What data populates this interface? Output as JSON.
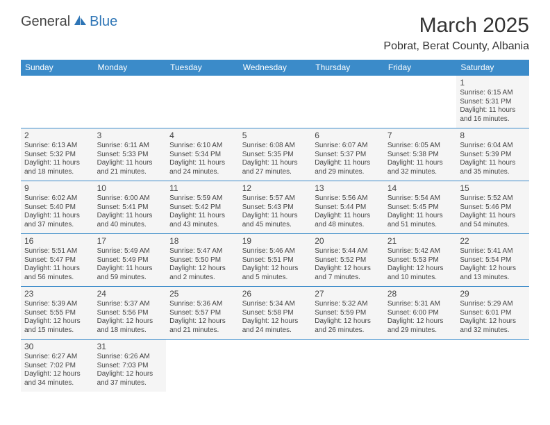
{
  "logo": {
    "general": "General",
    "blue": "Blue"
  },
  "title": "March 2025",
  "location": "Pobrat, Berat County, Albania",
  "header_color": "#3b8bc9",
  "days": [
    "Sunday",
    "Monday",
    "Tuesday",
    "Wednesday",
    "Thursday",
    "Friday",
    "Saturday"
  ],
  "weeks": [
    [
      null,
      null,
      null,
      null,
      null,
      null,
      {
        "n": "1",
        "sr": "Sunrise: 6:15 AM",
        "ss": "Sunset: 5:31 PM",
        "dl": "Daylight: 11 hours and 16 minutes."
      }
    ],
    [
      {
        "n": "2",
        "sr": "Sunrise: 6:13 AM",
        "ss": "Sunset: 5:32 PM",
        "dl": "Daylight: 11 hours and 18 minutes."
      },
      {
        "n": "3",
        "sr": "Sunrise: 6:11 AM",
        "ss": "Sunset: 5:33 PM",
        "dl": "Daylight: 11 hours and 21 minutes."
      },
      {
        "n": "4",
        "sr": "Sunrise: 6:10 AM",
        "ss": "Sunset: 5:34 PM",
        "dl": "Daylight: 11 hours and 24 minutes."
      },
      {
        "n": "5",
        "sr": "Sunrise: 6:08 AM",
        "ss": "Sunset: 5:35 PM",
        "dl": "Daylight: 11 hours and 27 minutes."
      },
      {
        "n": "6",
        "sr": "Sunrise: 6:07 AM",
        "ss": "Sunset: 5:37 PM",
        "dl": "Daylight: 11 hours and 29 minutes."
      },
      {
        "n": "7",
        "sr": "Sunrise: 6:05 AM",
        "ss": "Sunset: 5:38 PM",
        "dl": "Daylight: 11 hours and 32 minutes."
      },
      {
        "n": "8",
        "sr": "Sunrise: 6:04 AM",
        "ss": "Sunset: 5:39 PM",
        "dl": "Daylight: 11 hours and 35 minutes."
      }
    ],
    [
      {
        "n": "9",
        "sr": "Sunrise: 6:02 AM",
        "ss": "Sunset: 5:40 PM",
        "dl": "Daylight: 11 hours and 37 minutes."
      },
      {
        "n": "10",
        "sr": "Sunrise: 6:00 AM",
        "ss": "Sunset: 5:41 PM",
        "dl": "Daylight: 11 hours and 40 minutes."
      },
      {
        "n": "11",
        "sr": "Sunrise: 5:59 AM",
        "ss": "Sunset: 5:42 PM",
        "dl": "Daylight: 11 hours and 43 minutes."
      },
      {
        "n": "12",
        "sr": "Sunrise: 5:57 AM",
        "ss": "Sunset: 5:43 PM",
        "dl": "Daylight: 11 hours and 45 minutes."
      },
      {
        "n": "13",
        "sr": "Sunrise: 5:56 AM",
        "ss": "Sunset: 5:44 PM",
        "dl": "Daylight: 11 hours and 48 minutes."
      },
      {
        "n": "14",
        "sr": "Sunrise: 5:54 AM",
        "ss": "Sunset: 5:45 PM",
        "dl": "Daylight: 11 hours and 51 minutes."
      },
      {
        "n": "15",
        "sr": "Sunrise: 5:52 AM",
        "ss": "Sunset: 5:46 PM",
        "dl": "Daylight: 11 hours and 54 minutes."
      }
    ],
    [
      {
        "n": "16",
        "sr": "Sunrise: 5:51 AM",
        "ss": "Sunset: 5:47 PM",
        "dl": "Daylight: 11 hours and 56 minutes."
      },
      {
        "n": "17",
        "sr": "Sunrise: 5:49 AM",
        "ss": "Sunset: 5:49 PM",
        "dl": "Daylight: 11 hours and 59 minutes."
      },
      {
        "n": "18",
        "sr": "Sunrise: 5:47 AM",
        "ss": "Sunset: 5:50 PM",
        "dl": "Daylight: 12 hours and 2 minutes."
      },
      {
        "n": "19",
        "sr": "Sunrise: 5:46 AM",
        "ss": "Sunset: 5:51 PM",
        "dl": "Daylight: 12 hours and 5 minutes."
      },
      {
        "n": "20",
        "sr": "Sunrise: 5:44 AM",
        "ss": "Sunset: 5:52 PM",
        "dl": "Daylight: 12 hours and 7 minutes."
      },
      {
        "n": "21",
        "sr": "Sunrise: 5:42 AM",
        "ss": "Sunset: 5:53 PM",
        "dl": "Daylight: 12 hours and 10 minutes."
      },
      {
        "n": "22",
        "sr": "Sunrise: 5:41 AM",
        "ss": "Sunset: 5:54 PM",
        "dl": "Daylight: 12 hours and 13 minutes."
      }
    ],
    [
      {
        "n": "23",
        "sr": "Sunrise: 5:39 AM",
        "ss": "Sunset: 5:55 PM",
        "dl": "Daylight: 12 hours and 15 minutes."
      },
      {
        "n": "24",
        "sr": "Sunrise: 5:37 AM",
        "ss": "Sunset: 5:56 PM",
        "dl": "Daylight: 12 hours and 18 minutes."
      },
      {
        "n": "25",
        "sr": "Sunrise: 5:36 AM",
        "ss": "Sunset: 5:57 PM",
        "dl": "Daylight: 12 hours and 21 minutes."
      },
      {
        "n": "26",
        "sr": "Sunrise: 5:34 AM",
        "ss": "Sunset: 5:58 PM",
        "dl": "Daylight: 12 hours and 24 minutes."
      },
      {
        "n": "27",
        "sr": "Sunrise: 5:32 AM",
        "ss": "Sunset: 5:59 PM",
        "dl": "Daylight: 12 hours and 26 minutes."
      },
      {
        "n": "28",
        "sr": "Sunrise: 5:31 AM",
        "ss": "Sunset: 6:00 PM",
        "dl": "Daylight: 12 hours and 29 minutes."
      },
      {
        "n": "29",
        "sr": "Sunrise: 5:29 AM",
        "ss": "Sunset: 6:01 PM",
        "dl": "Daylight: 12 hours and 32 minutes."
      }
    ],
    [
      {
        "n": "30",
        "sr": "Sunrise: 6:27 AM",
        "ss": "Sunset: 7:02 PM",
        "dl": "Daylight: 12 hours and 34 minutes."
      },
      {
        "n": "31",
        "sr": "Sunrise: 6:26 AM",
        "ss": "Sunset: 7:03 PM",
        "dl": "Daylight: 12 hours and 37 minutes."
      },
      null,
      null,
      null,
      null,
      null
    ]
  ]
}
